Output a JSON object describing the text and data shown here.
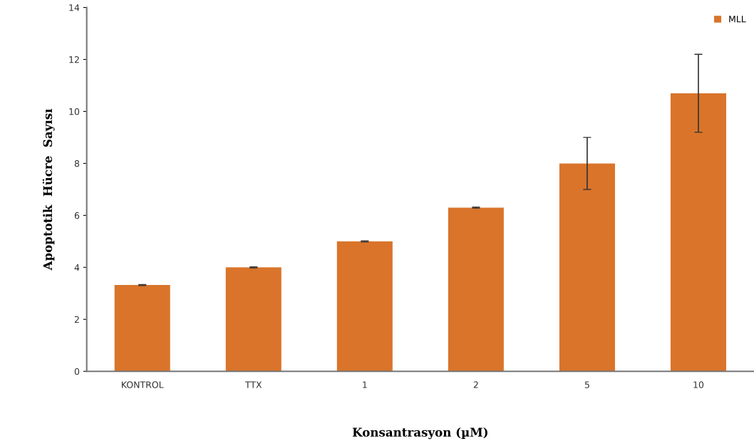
{
  "chart_data": {
    "type": "bar",
    "xlabel": "Konsantrasyon (µM)",
    "ylabel": "Apoptotik  Hücre  Sayısı",
    "categories": [
      "KONTROL",
      "TTX",
      "1",
      "2",
      "5",
      "10"
    ],
    "series": [
      {
        "name": "MLL",
        "color": "#d9742a",
        "values": [
          3.32,
          4.0,
          5.0,
          6.3,
          8.0,
          10.7
        ],
        "errors": [
          0.02,
          0.02,
          0.02,
          0.02,
          1.0,
          1.5
        ]
      }
    ],
    "ylim": [
      0,
      14
    ],
    "yticks": [
      0,
      2,
      4,
      6,
      8,
      10,
      12,
      14
    ],
    "grid": false,
    "legend": "top right"
  }
}
